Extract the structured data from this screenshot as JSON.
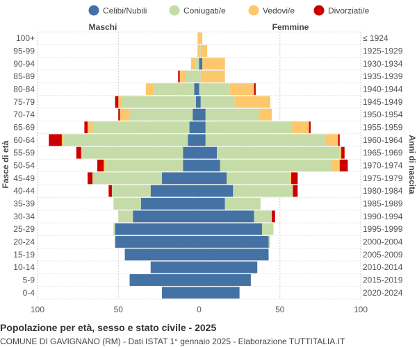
{
  "chart_data": {
    "type": "bar",
    "orientation": "horizontal-pyramid",
    "title": "Popolazione per età, sesso e stato civile - 2025",
    "subtitle": "COMUNE DI GAVIGNANO (RM) - Dati ISTAT 1° gennaio 2025 - Elaborazione TUTTITALIA.IT",
    "left_label": "Maschi",
    "right_label": "Femmine",
    "ylabel_left": "Fasce di età",
    "ylabel_right": "Anni di nascita",
    "xlim": [
      -100,
      100
    ],
    "x_ticks": [
      -100,
      -50,
      0,
      50,
      100
    ],
    "x_tick_labels": [
      "100",
      "50",
      "0",
      "50",
      "100"
    ],
    "grid": true,
    "legend_position": "top",
    "categories": [
      "100+",
      "95-99",
      "90-94",
      "85-89",
      "80-84",
      "75-79",
      "70-74",
      "65-69",
      "60-64",
      "55-59",
      "50-54",
      "45-49",
      "40-44",
      "35-39",
      "30-34",
      "25-29",
      "20-24",
      "15-19",
      "10-14",
      "5-9",
      "0-4"
    ],
    "birth_years": [
      "≤ 1924",
      "1925-1929",
      "1930-1934",
      "1935-1939",
      "1940-1944",
      "1945-1949",
      "1950-1954",
      "1955-1959",
      "1960-1964",
      "1965-1969",
      "1970-1974",
      "1975-1979",
      "1980-1984",
      "1985-1989",
      "1990-1994",
      "1995-1999",
      "2000-2004",
      "2005-2009",
      "2010-2014",
      "2015-2019",
      "2020-2024"
    ],
    "series": [
      {
        "name": "Celibi/Nubili",
        "color": "#4472a4",
        "male": [
          0,
          0,
          0,
          0,
          3,
          2,
          4,
          6,
          7,
          10,
          10,
          23,
          30,
          36,
          41,
          52,
          52,
          46,
          30,
          43,
          23
        ],
        "female": [
          0,
          0,
          2,
          0,
          0,
          1,
          4,
          4,
          4,
          11,
          13,
          17,
          21,
          16,
          34,
          39,
          43,
          43,
          36,
          32,
          25
        ]
      },
      {
        "name": "Coniugati/e",
        "color": "#c5dca8",
        "male": [
          0,
          0,
          2,
          8,
          25,
          46,
          39,
          60,
          77,
          63,
          48,
          43,
          24,
          17,
          9,
          1,
          0,
          0,
          0,
          0,
          0
        ],
        "female": [
          0,
          1,
          0,
          1,
          19,
          21,
          33,
          53,
          74,
          76,
          69,
          39,
          37,
          22,
          11,
          7,
          1,
          0,
          0,
          0,
          0
        ]
      },
      {
        "name": "Vedovi/e",
        "color": "#fdc86c",
        "male": [
          1,
          1,
          3,
          4,
          5,
          2,
          6,
          3,
          1,
          0,
          1,
          0,
          0,
          0,
          0,
          0,
          0,
          0,
          0,
          0,
          0
        ],
        "female": [
          2,
          4,
          14,
          15,
          15,
          22,
          8,
          11,
          8,
          1,
          5,
          1,
          0,
          0,
          0,
          0,
          0,
          0,
          0,
          0,
          0
        ]
      },
      {
        "name": "Divorziati/e",
        "color": "#cc0000",
        "male": [
          0,
          0,
          0,
          1,
          0,
          2,
          1,
          2,
          8,
          3,
          4,
          3,
          2,
          0,
          0,
          0,
          0,
          0,
          0,
          0,
          0
        ],
        "female": [
          0,
          0,
          0,
          0,
          1,
          0,
          0,
          1,
          1,
          2,
          5,
          4,
          3,
          0,
          2,
          0,
          0,
          0,
          0,
          0,
          0
        ]
      }
    ]
  }
}
